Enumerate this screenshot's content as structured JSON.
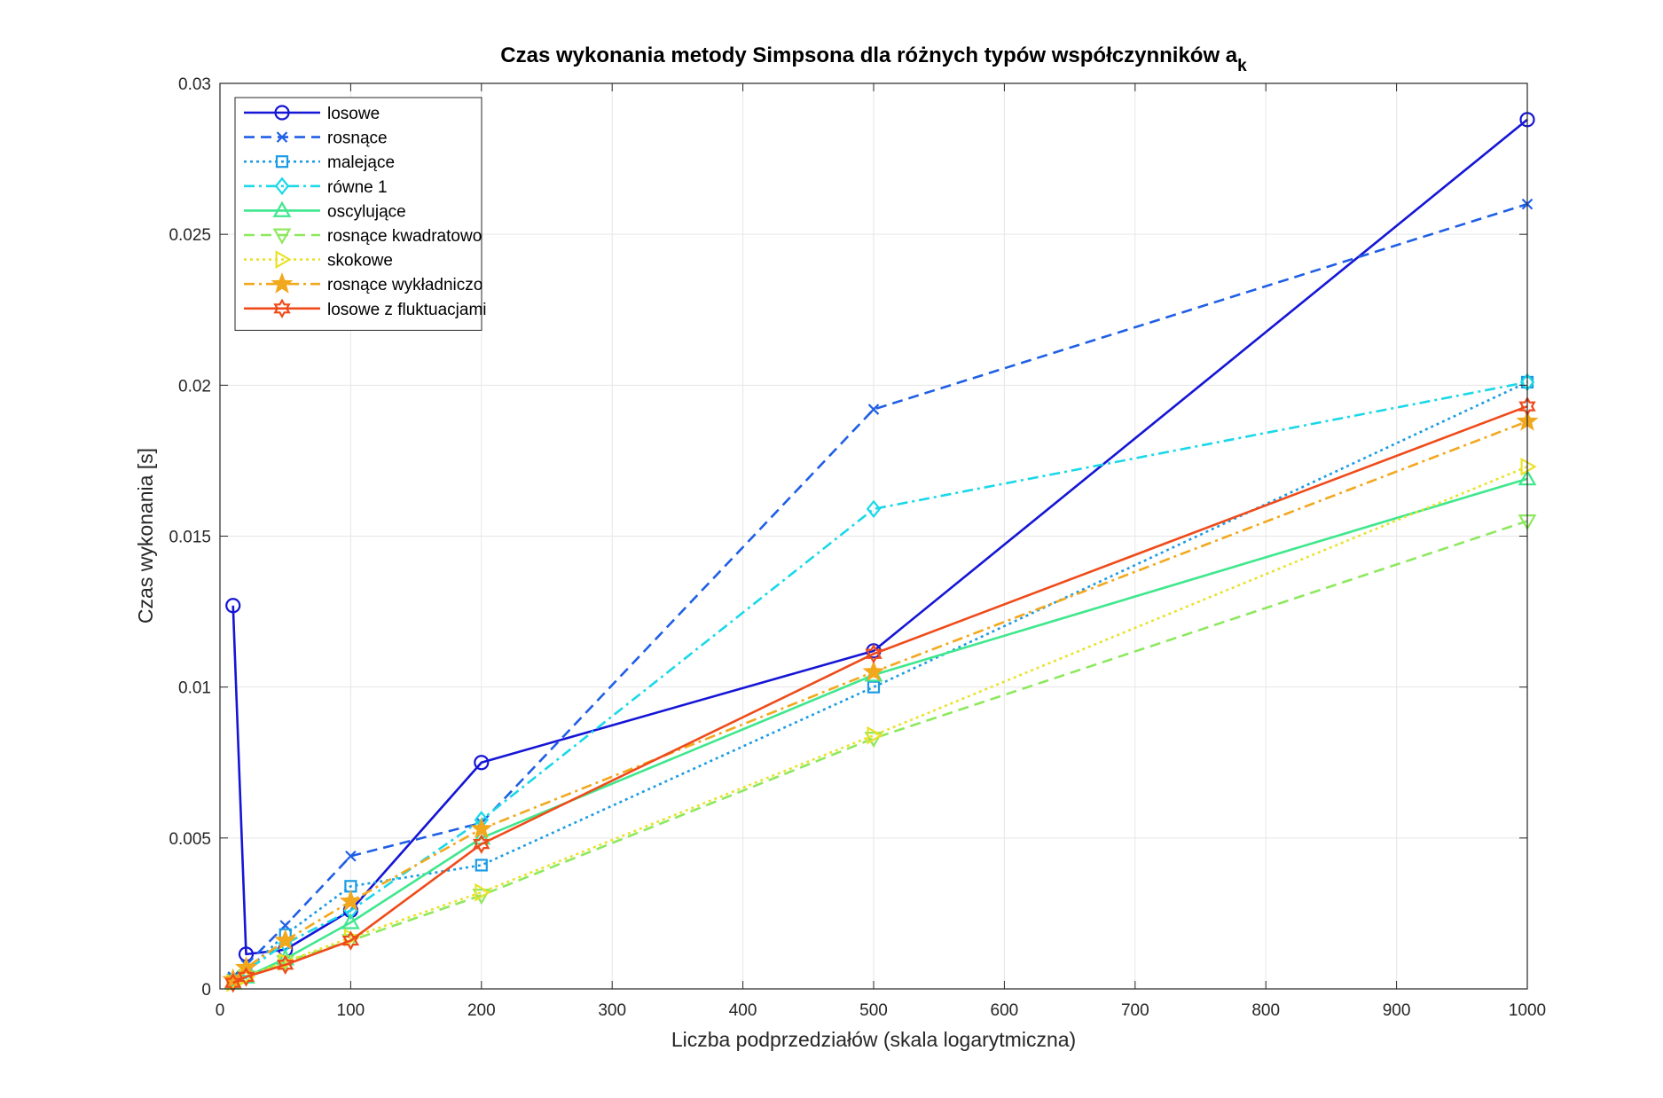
{
  "chart_data": {
    "type": "line",
    "title": "Czas wykonania metody Simpsona dla różnych typów współczynników a",
    "title_subscript": "k",
    "xlabel": "Liczba podprzedziałów (skala logarytmiczna)",
    "ylabel": "Czas wykonania [s]",
    "xlim": [
      0,
      1000
    ],
    "ylim": [
      0,
      0.03
    ],
    "x_ticks": [
      0,
      100,
      200,
      300,
      400,
      500,
      600,
      700,
      800,
      900,
      1000
    ],
    "x_tick_labels": [
      "0",
      "100",
      "200",
      "300",
      "400",
      "500",
      "600",
      "700",
      "800",
      "900",
      "1000"
    ],
    "y_ticks": [
      0,
      0.005,
      0.01,
      0.015,
      0.02,
      0.025,
      0.03
    ],
    "y_tick_labels": [
      "0",
      "0.005",
      "0.01",
      "0.015",
      "0.02",
      "0.025",
      "0.03"
    ],
    "grid": true,
    "legend_position": "top-left",
    "x": [
      10,
      20,
      50,
      100,
      200,
      500,
      1000
    ],
    "series": [
      {
        "name": "losowe",
        "values": [
          0.0127,
          0.00115,
          0.0013,
          0.0026,
          0.0075,
          0.0112,
          0.0288
        ],
        "color": "#1515d6",
        "dash": "solid",
        "marker": "circle"
      },
      {
        "name": "rosnące",
        "values": [
          0.0004,
          0.0008,
          0.0021,
          0.0044,
          0.0055,
          0.0192,
          0.026
        ],
        "color": "#1f5fe6",
        "dash": "dashed",
        "marker": "x"
      },
      {
        "name": "malejące",
        "values": [
          0.0003,
          0.0006,
          0.0018,
          0.0034,
          0.0041,
          0.01,
          0.0201
        ],
        "color": "#1c9be3",
        "dash": "dotted",
        "marker": "square"
      },
      {
        "name": "równe 1",
        "values": [
          0.0003,
          0.0006,
          0.0015,
          0.0026,
          0.0056,
          0.0159,
          0.0201
        ],
        "color": "#1ad8e8",
        "dash": "dashdot",
        "marker": "diamond"
      },
      {
        "name": "oscylujące",
        "values": [
          0.0002,
          0.0004,
          0.001,
          0.0022,
          0.005,
          0.0104,
          0.0169
        ],
        "color": "#3fe78d",
        "dash": "solid",
        "marker": "triangle-up"
      },
      {
        "name": "rosnące kwadratowo",
        "values": [
          0.0002,
          0.0004,
          0.0009,
          0.0016,
          0.0031,
          0.0083,
          0.0155
        ],
        "color": "#8ee85f",
        "dash": "dashed",
        "marker": "triangle-down"
      },
      {
        "name": "skokowe",
        "values": [
          0.0002,
          0.0004,
          0.0009,
          0.0017,
          0.0032,
          0.0084,
          0.0173
        ],
        "color": "#e9e22a",
        "dash": "dotted",
        "marker": "triangle-right"
      },
      {
        "name": "rosnące wykładniczo",
        "values": [
          0.0003,
          0.0007,
          0.0016,
          0.0029,
          0.0053,
          0.0105,
          0.0188
        ],
        "color": "#f2a81d",
        "dash": "dashdot",
        "marker": "pentagram"
      },
      {
        "name": "losowe z fluktuacjami",
        "values": [
          0.0002,
          0.0004,
          0.0008,
          0.0016,
          0.0048,
          0.0111,
          0.0193
        ],
        "color": "#ef4b1a",
        "dash": "solid",
        "marker": "hexagram"
      }
    ]
  }
}
